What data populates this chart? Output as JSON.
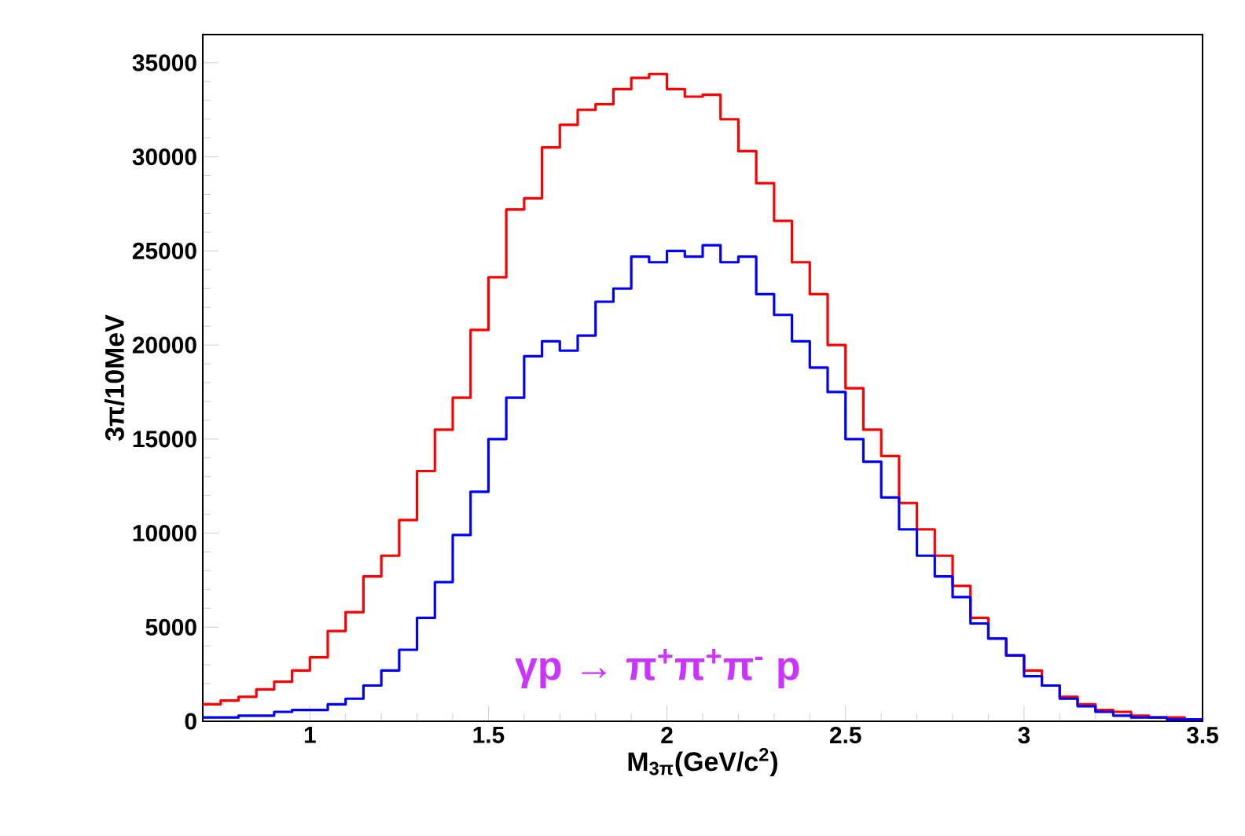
{
  "chart_data": {
    "type": "histogram",
    "xlabel": "M$_{3π}$(GeV/c$^{2}$)",
    "ylabel": "3π/10MeV",
    "annotations": [
      "γp → π$^{+}$π$^{+}$π$^{-}$ p"
    ],
    "xlim": [
      0.7,
      3.5
    ],
    "ylim": [
      0,
      36500
    ],
    "xticks": [
      1,
      1.5,
      2,
      2.5,
      3,
      3.5
    ],
    "yticks": [
      0,
      5000,
      10000,
      15000,
      20000,
      25000,
      30000,
      35000
    ],
    "grid": false,
    "bins": [
      0.7,
      0.75,
      0.8,
      0.85,
      0.9,
      0.95,
      1.0,
      1.05,
      1.1,
      1.15,
      1.2,
      1.25,
      1.3,
      1.35,
      1.4,
      1.45,
      1.5,
      1.55,
      1.6,
      1.65,
      1.7,
      1.75,
      1.8,
      1.85,
      1.9,
      1.95,
      2.0,
      2.05,
      2.1,
      2.15,
      2.2,
      2.25,
      2.3,
      2.35,
      2.4,
      2.45,
      2.5,
      2.55,
      2.6,
      2.65,
      2.7,
      2.75,
      2.8,
      2.85,
      2.9,
      2.95,
      3.0,
      3.05,
      3.1,
      3.15,
      3.2,
      3.25,
      3.3,
      3.35,
      3.4,
      3.45,
      3.5
    ],
    "series": [
      {
        "color": "#ff0000",
        "values": [
          900,
          1100,
          1300,
          1700,
          2100,
          2700,
          3400,
          4800,
          5800,
          7700,
          8800,
          10700,
          13300,
          15500,
          17200,
          20800,
          23600,
          27200,
          27800,
          30500,
          31700,
          32500,
          32800,
          33600,
          34200,
          34400,
          33600,
          33200,
          33300,
          32000,
          30300,
          28600,
          26600,
          24400,
          22700,
          20000,
          17700,
          15500,
          14100,
          11600,
          10200,
          8800,
          7200,
          5500,
          4400,
          3500,
          2700,
          1900,
          1300,
          900,
          600,
          500,
          300,
          200,
          200,
          100
        ]
      },
      {
        "color": "#0000ff",
        "values": [
          200,
          200,
          300,
          300,
          500,
          600,
          600,
          900,
          1200,
          1900,
          2700,
          3800,
          5500,
          7400,
          9900,
          12200,
          15000,
          17200,
          19400,
          20200,
          19700,
          20500,
          22300,
          23000,
          24700,
          24400,
          25000,
          24700,
          25300,
          24400,
          24700,
          22700,
          21600,
          20200,
          18800,
          17500,
          15000,
          13800,
          11900,
          10200,
          8800,
          7700,
          6600,
          5200,
          4400,
          3500,
          2400,
          1900,
          1200,
          800,
          500,
          300,
          200,
          200,
          100,
          100
        ]
      }
    ]
  }
}
